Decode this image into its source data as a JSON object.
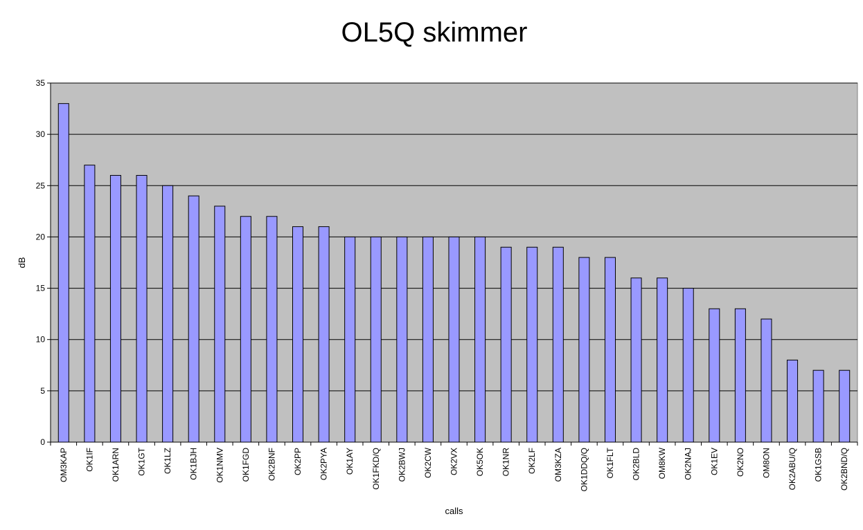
{
  "chart_data": {
    "type": "bar",
    "title": "OL5Q skimmer",
    "xlabel": "calls",
    "ylabel": "dB",
    "ylim": [
      0,
      35
    ],
    "ytick_step": 5,
    "grid": true,
    "legend": "none",
    "plot_background": "#c0c0c0",
    "bar_color": "#9999ff",
    "categories": [
      "OM3KAP",
      "OK1IF",
      "OK1ARN",
      "OK1GT",
      "OK1LZ",
      "OK1BJH",
      "OK1NMV",
      "OK1FGD",
      "OK2BNF",
      "OK2PP",
      "OK2PYA",
      "OK1AY",
      "OK1FKD/Q",
      "OK2BWJ",
      "OK2CW",
      "OK2VX",
      "OK5OK",
      "OK1NR",
      "OK2LF",
      "OM3KZA",
      "OK1DDQ/Q",
      "OK1FLT",
      "OK2BLD",
      "OM8KW",
      "OK2NAJ",
      "OK1EV",
      "OK2NO",
      "OM8ON",
      "OK2ABU/Q",
      "OK1GSB",
      "OK2BND/Q"
    ],
    "values": [
      33,
      27,
      26,
      26,
      25,
      24,
      23,
      22,
      22,
      21,
      21,
      20,
      20,
      20,
      20,
      20,
      20,
      19,
      19,
      19,
      18,
      18,
      16,
      16,
      15,
      13,
      13,
      12,
      8,
      7,
      7
    ]
  }
}
